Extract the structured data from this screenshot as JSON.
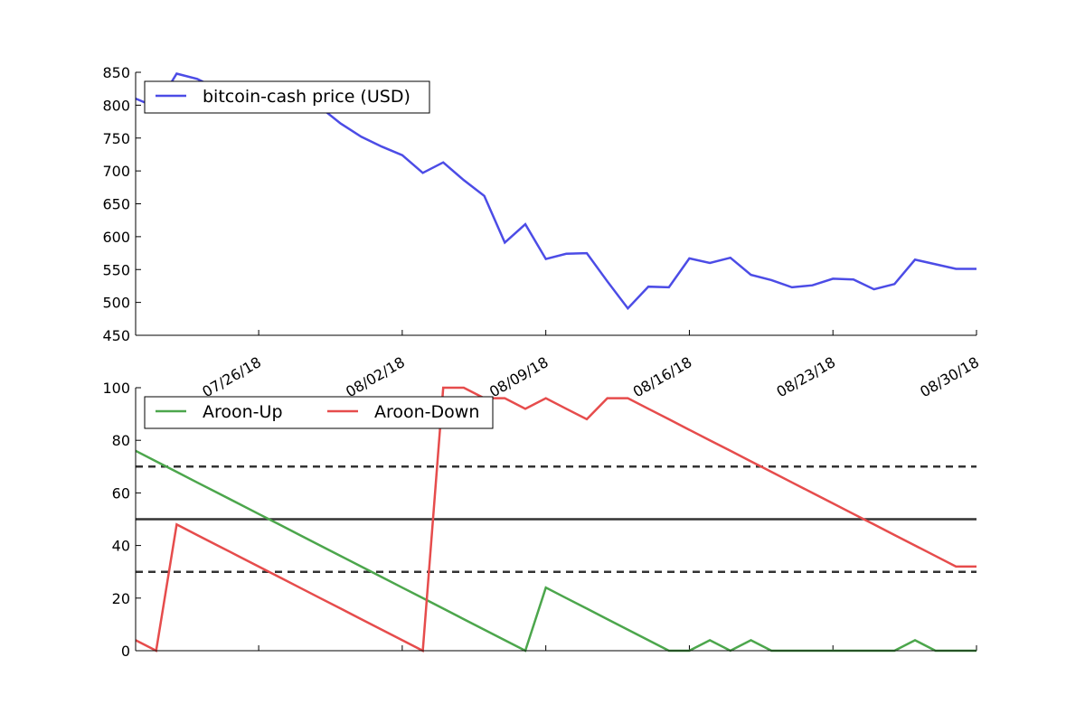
{
  "chart_data": [
    {
      "type": "line",
      "x": [
        "07/20/18",
        "07/21/18",
        "07/22/18",
        "07/23/18",
        "07/24/18",
        "07/25/18",
        "07/26/18",
        "07/27/18",
        "07/28/18",
        "07/29/18",
        "07/30/18",
        "07/31/18",
        "08/01/18",
        "08/02/18",
        "08/03/18",
        "08/04/18",
        "08/05/18",
        "08/06/18",
        "08/07/18",
        "08/08/18",
        "08/09/18",
        "08/10/18",
        "08/11/18",
        "08/12/18",
        "08/13/18",
        "08/14/18",
        "08/15/18",
        "08/16/18",
        "08/17/18",
        "08/18/18",
        "08/19/18",
        "08/20/18",
        "08/21/18",
        "08/22/18",
        "08/23/18",
        "08/24/18",
        "08/25/18",
        "08/26/18",
        "08/27/18",
        "08/28/18",
        "08/29/18",
        "08/30/18"
      ],
      "series": [
        {
          "name": "bitcoin-cash price (USD)",
          "color": "#4c4ce6",
          "values": [
            810,
            797,
            848,
            840,
            825,
            815,
            808,
            800,
            805,
            797,
            772,
            752,
            737,
            724,
            697,
            713,
            686,
            662,
            591,
            619,
            566,
            574,
            575,
            532,
            491,
            524,
            523,
            567,
            560,
            568,
            542,
            534,
            523,
            526,
            536,
            535,
            520,
            528,
            565,
            558,
            551,
            551
          ]
        }
      ],
      "xticks": [
        "07/26/18",
        "08/02/18",
        "08/09/18",
        "08/16/18",
        "08/23/18",
        "08/30/18"
      ],
      "yticks": [
        "450",
        "500",
        "550",
        "600",
        "650",
        "700",
        "750",
        "800",
        "850"
      ],
      "ylim": [
        450,
        850
      ],
      "legend": "upper-left"
    },
    {
      "type": "line",
      "x": [
        "07/20/18",
        "07/21/18",
        "07/22/18",
        "07/23/18",
        "07/24/18",
        "07/25/18",
        "07/26/18",
        "07/27/18",
        "07/28/18",
        "07/29/18",
        "07/30/18",
        "07/31/18",
        "08/01/18",
        "08/02/18",
        "08/03/18",
        "08/04/18",
        "08/05/18",
        "08/06/18",
        "08/07/18",
        "08/08/18",
        "08/09/18",
        "08/10/18",
        "08/11/18",
        "08/12/18",
        "08/13/18",
        "08/14/18",
        "08/15/18",
        "08/16/18",
        "08/17/18",
        "08/18/18",
        "08/19/18",
        "08/20/18",
        "08/21/18",
        "08/22/18",
        "08/23/18",
        "08/24/18",
        "08/25/18",
        "08/26/18",
        "08/27/18",
        "08/28/18",
        "08/29/18",
        "08/30/18"
      ],
      "series": [
        {
          "name": "Aroon-Up",
          "color": "#4ca64c",
          "values": [
            76,
            72,
            68,
            64,
            60,
            56,
            52,
            48,
            44,
            40,
            36,
            32,
            28,
            24,
            20,
            16,
            12,
            8,
            4,
            0,
            24,
            20,
            16,
            12,
            8,
            4,
            0,
            0,
            4,
            0,
            4,
            0,
            0,
            0,
            0,
            0,
            0,
            0,
            4,
            0,
            0,
            0
          ]
        },
        {
          "name": "Aroon-Down",
          "color": "#e64c4c",
          "values": [
            4,
            0,
            48,
            44,
            40,
            36,
            32,
            28,
            24,
            20,
            16,
            12,
            8,
            4,
            0,
            100,
            100,
            96,
            96,
            92,
            96,
            92,
            88,
            96,
            96,
            92,
            88,
            84,
            80,
            76,
            72,
            68,
            64,
            60,
            56,
            52,
            48,
            44,
            40,
            36,
            32,
            32
          ]
        }
      ],
      "reference_lines": [
        {
          "y": 70,
          "style": "dashed"
        },
        {
          "y": 50,
          "style": "solid"
        },
        {
          "y": 30,
          "style": "dashed"
        }
      ],
      "yticks": [
        "0",
        "20",
        "40",
        "60",
        "80",
        "100"
      ],
      "ylim": [
        0,
        100
      ],
      "legend": "upper-left"
    }
  ]
}
